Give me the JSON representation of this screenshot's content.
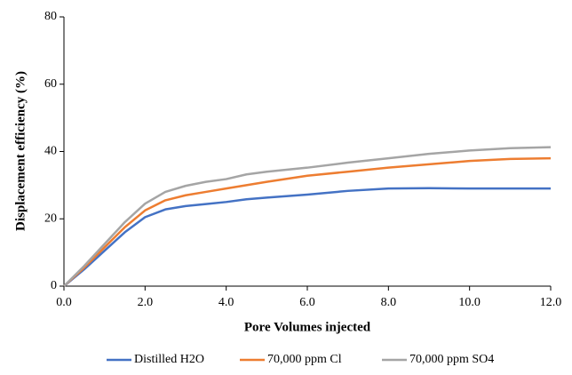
{
  "chart_data": {
    "type": "line",
    "x_label": "Pore Volumes injected",
    "y_label": "Displacement efficiency (%)",
    "x": [
      0,
      0.5,
      1,
      1.5,
      2,
      2.5,
      3,
      3.5,
      4,
      4.5,
      5,
      6,
      7,
      8,
      9,
      10,
      11,
      12
    ],
    "series": [
      {
        "name": "Distilled H2O",
        "color": "#4472c4",
        "values": [
          0,
          5,
          10.5,
          16,
          20.5,
          22.8,
          23.8,
          24.4,
          25,
          25.8,
          26.3,
          27.2,
          28.3,
          29,
          29.1,
          29,
          29,
          29
        ]
      },
      {
        "name": "70,000 ppm Cl",
        "color": "#ed7d31",
        "values": [
          0,
          5.5,
          11.5,
          17.5,
          22.5,
          25.5,
          27,
          28,
          29,
          30,
          31,
          32.8,
          34,
          35.2,
          36.2,
          37.2,
          37.8,
          38
        ]
      },
      {
        "name": "70,000 ppm SO4",
        "color": "#a5a5a5",
        "values": [
          0,
          6,
          12.5,
          19,
          24.5,
          28,
          29.8,
          31,
          31.8,
          33.2,
          34,
          35.2,
          36.7,
          38,
          39.3,
          40.3,
          41,
          41.3
        ]
      }
    ],
    "xlim": [
      0,
      12
    ],
    "xticks": [
      {
        "value": 0,
        "label": "0.0"
      },
      {
        "value": 2,
        "label": "2.0"
      },
      {
        "value": 4,
        "label": "4.0"
      },
      {
        "value": 6,
        "label": "6.0"
      },
      {
        "value": 8,
        "label": "8.0"
      },
      {
        "value": 10,
        "label": "10.0"
      },
      {
        "value": 12,
        "label": "12.0"
      }
    ],
    "ylim": [
      0,
      80
    ],
    "yticks": [
      0,
      20,
      40,
      60,
      80
    ],
    "grid": false,
    "legend": "bottom"
  }
}
